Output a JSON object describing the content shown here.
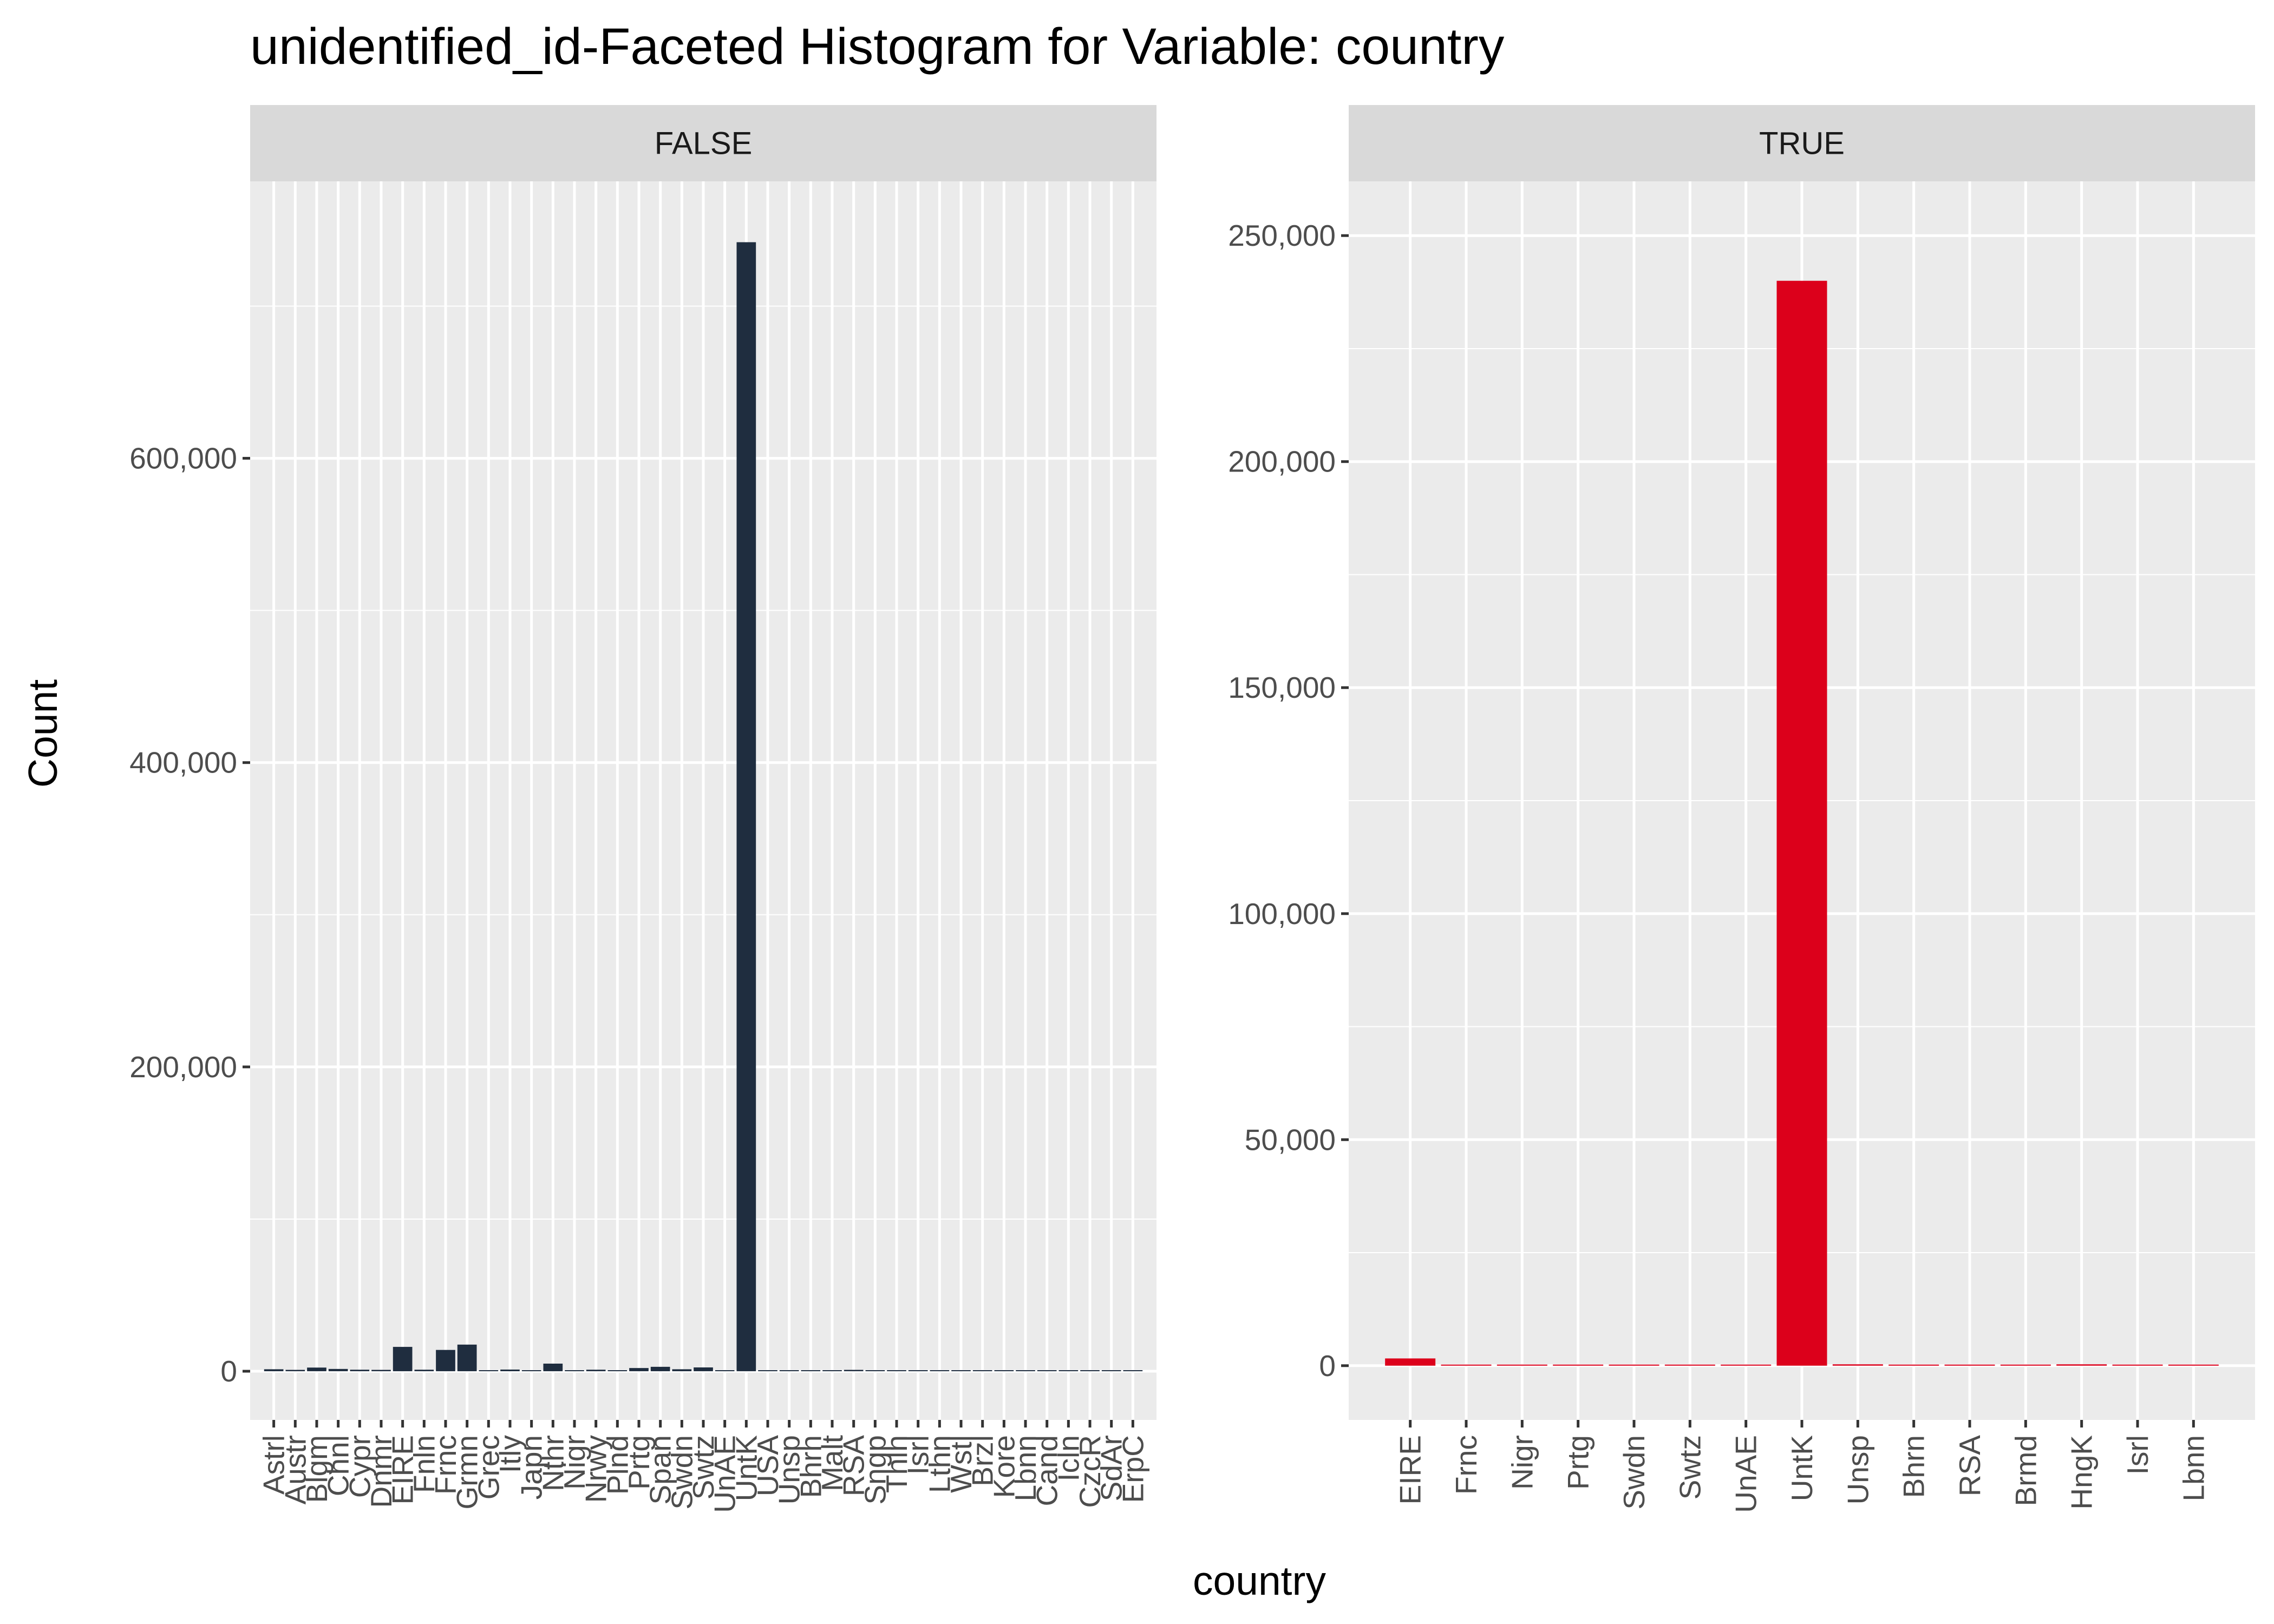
{
  "chart_data": {
    "type": "bar",
    "title": "unidentified_id-Faceted Histogram for Variable: country",
    "xlabel": "country",
    "ylabel": "Count",
    "grid": true,
    "legend": "none",
    "facets": [
      {
        "strip_label": "FALSE",
        "color": "#1f2d3f",
        "ylim": [
          -32000,
          782000
        ],
        "yticks": [
          0,
          200000,
          400000,
          600000
        ],
        "ytick_labels": [
          "0",
          "200,000",
          "400,000",
          "600,000"
        ],
        "categories": [
          "Astrl",
          "Austr",
          "Blgm",
          "Chnl",
          "Cypr",
          "Dnmr",
          "EIRE",
          "Fnln",
          "Frnc",
          "Grmn",
          "Grec",
          "Itly",
          "Japn",
          "Nthr",
          "Nigr",
          "Nrwy",
          "Plnd",
          "Prtg",
          "Span",
          "Swdn",
          "Swtz",
          "UnAE",
          "UntK",
          "USA",
          "Unsp",
          "Bhrn",
          "Malt",
          "RSA",
          "Sngp",
          "Thln",
          "Isrl",
          "Lthn",
          "Wstl",
          "Brzl",
          "Kore",
          "Lbnn",
          "Cand",
          "Icln",
          "CzcR",
          "SdAr",
          "ErpC"
        ],
        "values": [
          1300,
          900,
          2400,
          1500,
          1000,
          900,
          16000,
          1000,
          14000,
          17500,
          700,
          1100,
          400,
          5000,
          300,
          1000,
          300,
          2100,
          2900,
          1300,
          2500,
          500,
          742000,
          300,
          400,
          200,
          200,
          900,
          200,
          300,
          200,
          100,
          100,
          100,
          100,
          100,
          100,
          100,
          100,
          100,
          100
        ]
      },
      {
        "strip_label": "TRUE",
        "color": "#dc001b",
        "ylim": [
          -12000,
          262000
        ],
        "yticks": [
          0,
          50000,
          100000,
          150000,
          200000,
          250000
        ],
        "ytick_labels": [
          "0",
          "50,000",
          "100,000",
          "150,000",
          "200,000",
          "250,000"
        ],
        "categories": [
          "EIRE",
          "Frnc",
          "Nigr",
          "Prtg",
          "Swdn",
          "Swtz",
          "UnAE",
          "UntK",
          "Unsp",
          "Bhrn",
          "RSA",
          "Brmd",
          "HngK",
          "Isrl",
          "Lbnn"
        ],
        "values": [
          1600,
          200,
          50,
          150,
          60,
          150,
          150,
          240000,
          300,
          50,
          40,
          50,
          300,
          50,
          30
        ]
      }
    ]
  }
}
